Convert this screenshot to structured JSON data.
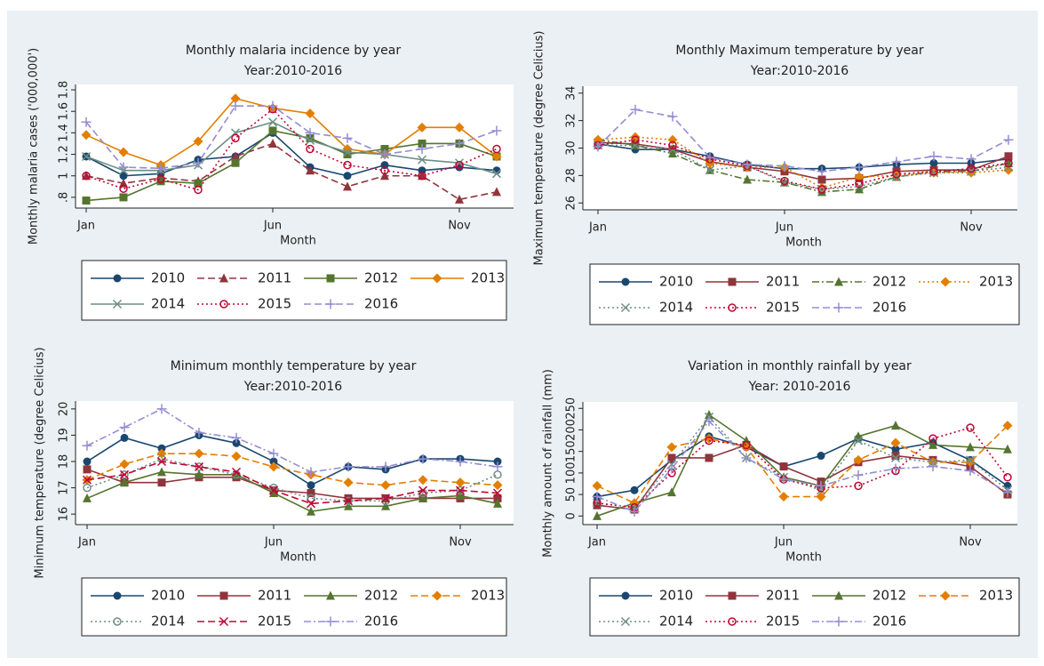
{
  "chart_data": [
    {
      "type": "line",
      "title": "Monthly malaria incidence by year",
      "subtitle": "Year:2010-2016",
      "x_label": "Month",
      "y_label": "Monthly malaria cases ('000,000')",
      "categories": [
        "Jan",
        null,
        null,
        null,
        null,
        "Jun",
        null,
        null,
        null,
        null,
        "Nov",
        null
      ],
      "ylim": [
        0.7,
        1.85
      ],
      "yticks": [
        {
          "value": 0.8,
          "label": ".8"
        },
        1,
        1.2,
        1.4,
        1.6,
        1.8
      ],
      "grid": false,
      "series": [
        {
          "name": "2010",
          "color": "#1a476f",
          "marker": "circle",
          "dash": "solid",
          "values": [
            1.18,
            1.0,
            1.02,
            1.15,
            1.18,
            1.4,
            1.08,
            1.0,
            1.1,
            1.05,
            1.08,
            1.05
          ]
        },
        {
          "name": "2011",
          "color": "#90353b",
          "marker": "triangle",
          "dash": "dash",
          "values": [
            1.0,
            0.93,
            0.98,
            0.95,
            1.18,
            1.3,
            1.05,
            0.9,
            1.0,
            1.0,
            0.78,
            0.85
          ]
        },
        {
          "name": "2012",
          "color": "#55752f",
          "marker": "square",
          "dash": "solid",
          "values": [
            0.77,
            0.8,
            0.95,
            0.93,
            1.12,
            1.42,
            1.35,
            1.2,
            1.25,
            1.3,
            1.3,
            1.18
          ]
        },
        {
          "name": "2013",
          "color": "#e37e00",
          "marker": "diamond",
          "dash": "solid",
          "values": [
            1.38,
            1.22,
            1.1,
            1.32,
            1.72,
            1.63,
            1.58,
            1.25,
            1.2,
            1.45,
            1.45,
            1.18
          ]
        },
        {
          "name": "2014",
          "color": "#6e8e84",
          "marker": "x",
          "dash": "solid",
          "values": [
            1.18,
            1.05,
            1.05,
            1.1,
            1.4,
            1.5,
            1.33,
            1.22,
            1.2,
            1.15,
            1.12,
            1.02
          ]
        },
        {
          "name": "2015",
          "color": "#c10534",
          "marker": "circle-open",
          "dash": "dot",
          "values": [
            1.0,
            0.88,
            0.97,
            0.87,
            1.35,
            1.62,
            1.25,
            1.1,
            1.05,
            1.0,
            1.1,
            1.25
          ]
        },
        {
          "name": "2016",
          "color": "#938dd2",
          "marker": "plus",
          "dash": "dash",
          "values": [
            1.5,
            1.08,
            1.07,
            1.12,
            1.65,
            1.65,
            1.4,
            1.35,
            1.2,
            1.25,
            1.3,
            1.42
          ]
        }
      ]
    },
    {
      "type": "line",
      "title": "Monthly Maximum temperature by year",
      "subtitle": "Year:2010-2016",
      "x_label": "Month",
      "y_label": "Maximum temperature (degree Celicius)",
      "categories": [
        "Jan",
        null,
        null,
        null,
        null,
        "Jun",
        null,
        null,
        null,
        null,
        "Nov",
        null
      ],
      "ylim": [
        25.5,
        34.5
      ],
      "yticks": [
        26,
        28,
        30,
        32,
        34
      ],
      "grid": false,
      "series": [
        {
          "name": "2010",
          "color": "#1a476f",
          "marker": "circle",
          "dash": "solid",
          "values": [
            30.3,
            29.9,
            29.9,
            29.4,
            28.8,
            28.5,
            28.5,
            28.6,
            28.8,
            28.9,
            28.9,
            29.2
          ]
        },
        {
          "name": "2011",
          "color": "#90353b",
          "marker": "square",
          "dash": "solid",
          "values": [
            30.4,
            30.3,
            29.9,
            29.0,
            28.6,
            28.3,
            27.7,
            27.8,
            28.3,
            28.4,
            28.4,
            29.4
          ]
        },
        {
          "name": "2012",
          "color": "#55752f",
          "marker": "triangle",
          "dash": "dashdot",
          "values": [
            30.6,
            30.2,
            29.6,
            28.4,
            27.7,
            27.5,
            26.8,
            27.0,
            27.9,
            28.3,
            28.3,
            28.9
          ]
        },
        {
          "name": "2013",
          "color": "#e37e00",
          "marker": "diamond",
          "dash": "dot",
          "values": [
            30.6,
            30.8,
            30.6,
            28.9,
            28.6,
            28.6,
            27.1,
            27.9,
            28.0,
            28.2,
            28.2,
            28.4
          ]
        },
        {
          "name": "2014",
          "color": "#6e8e84",
          "marker": "x",
          "dash": "dot",
          "values": [
            30.2,
            30.2,
            29.9,
            28.4,
            28.7,
            27.5,
            27.0,
            27.2,
            27.9,
            28.2,
            28.3,
            28.6
          ]
        },
        {
          "name": "2015",
          "color": "#c10534",
          "marker": "circle-open",
          "dash": "dot",
          "values": [
            30.2,
            30.6,
            30.2,
            29.2,
            28.7,
            27.6,
            27.0,
            27.4,
            28.1,
            28.3,
            28.5,
            28.9
          ]
        },
        {
          "name": "2016",
          "color": "#938dd2",
          "marker": "plus",
          "dash": "dash",
          "values": [
            30.1,
            32.8,
            32.3,
            29.3,
            28.8,
            28.7,
            28.3,
            28.6,
            29.0,
            29.4,
            29.2,
            30.6
          ]
        }
      ]
    },
    {
      "type": "line",
      "title": "Minimum monthly temperature by year",
      "subtitle": "Year:2010-2016",
      "x_label": "Month",
      "y_label": "Minimum temperature (degree Celicius)",
      "categories": [
        "Jan",
        null,
        null,
        null,
        null,
        "Jun",
        null,
        null,
        null,
        null,
        "Nov",
        null
      ],
      "ylim": [
        15.6,
        20.3
      ],
      "yticks": [
        16,
        17,
        18,
        19,
        20
      ],
      "grid": false,
      "series": [
        {
          "name": "2010",
          "color": "#1a476f",
          "marker": "circle",
          "dash": "solid",
          "values": [
            18.0,
            18.9,
            18.5,
            19.0,
            18.7,
            18.0,
            17.1,
            17.8,
            17.7,
            18.1,
            18.1,
            18.0
          ]
        },
        {
          "name": "2011",
          "color": "#90353b",
          "marker": "square",
          "dash": "solid",
          "values": [
            17.7,
            17.2,
            17.2,
            17.4,
            17.4,
            16.9,
            16.8,
            16.6,
            16.6,
            16.6,
            16.6,
            16.6
          ]
        },
        {
          "name": "2012",
          "color": "#55752f",
          "marker": "triangle",
          "dash": "solid",
          "values": [
            16.6,
            17.2,
            17.6,
            17.5,
            17.5,
            16.8,
            16.1,
            16.3,
            16.3,
            16.6,
            16.7,
            16.4
          ]
        },
        {
          "name": "2013",
          "color": "#e37e00",
          "marker": "diamond",
          "dash": "dash",
          "values": [
            17.3,
            17.9,
            18.3,
            18.3,
            18.2,
            17.8,
            17.5,
            17.2,
            17.1,
            17.3,
            17.2,
            17.1
          ]
        },
        {
          "name": "2014",
          "color": "#6e8e84",
          "marker": "circle-open",
          "dash": "dot",
          "values": [
            17.0,
            17.5,
            18.1,
            17.8,
            17.5,
            17.0,
            16.6,
            16.5,
            16.5,
            16.8,
            16.9,
            17.5
          ]
        },
        {
          "name": "2015",
          "color": "#c10534",
          "marker": "x",
          "dash": "dash",
          "values": [
            17.3,
            17.5,
            18.0,
            17.8,
            17.6,
            16.9,
            16.4,
            16.5,
            16.6,
            16.9,
            16.9,
            16.8
          ]
        },
        {
          "name": "2016",
          "color": "#938dd2",
          "marker": "plus",
          "dash": "dashdot",
          "values": [
            18.6,
            19.3,
            20.0,
            19.1,
            18.9,
            18.3,
            17.6,
            17.8,
            17.8,
            18.1,
            18.0,
            17.8
          ]
        }
      ]
    },
    {
      "type": "line",
      "title": "Variation in monthly rainfall by year",
      "subtitle": "Year: 2010-2016",
      "x_label": "Month",
      "y_label": "Monthly amount of rainfall (mm)",
      "categories": [
        "Jan",
        null,
        null,
        null,
        null,
        "Jun",
        null,
        null,
        null,
        null,
        "Nov",
        null
      ],
      "ylim": [
        -20,
        265
      ],
      "yticks": [
        0,
        50,
        100,
        150,
        200,
        250
      ],
      "grid": false,
      "series": [
        {
          "name": "2010",
          "color": "#1a476f",
          "marker": "circle",
          "dash": "solid",
          "values": [
            45,
            60,
            130,
            185,
            160,
            115,
            140,
            180,
            155,
            170,
            130,
            70
          ]
        },
        {
          "name": "2011",
          "color": "#90353b",
          "marker": "square",
          "dash": "solid",
          "values": [
            25,
            15,
            135,
            135,
            165,
            115,
            80,
            125,
            140,
            130,
            115,
            50
          ]
        },
        {
          "name": "2012",
          "color": "#55752f",
          "marker": "triangle",
          "dash": "solid",
          "values": [
            0,
            30,
            55,
            235,
            175,
            90,
            70,
            185,
            210,
            165,
            160,
            155
          ]
        },
        {
          "name": "2013",
          "color": "#e37e00",
          "marker": "diamond",
          "dash": "dash",
          "values": [
            70,
            30,
            160,
            180,
            160,
            45,
            45,
            130,
            170,
            125,
            125,
            210
          ]
        },
        {
          "name": "2014",
          "color": "#6e8e84",
          "marker": "x",
          "dash": "dot",
          "values": [
            30,
            20,
            120,
            230,
            135,
            90,
            60,
            175,
            135,
            125,
            130,
            60
          ]
        },
        {
          "name": "2015",
          "color": "#c10534",
          "marker": "circle-open",
          "dash": "dot",
          "values": [
            30,
            20,
            100,
            175,
            165,
            85,
            65,
            70,
            105,
            180,
            205,
            90
          ]
        },
        {
          "name": "2016",
          "color": "#938dd2",
          "marker": "plus",
          "dash": "dashdot",
          "values": [
            45,
            10,
            110,
            220,
            135,
            85,
            70,
            95,
            110,
            115,
            105,
            55
          ]
        }
      ]
    }
  ]
}
